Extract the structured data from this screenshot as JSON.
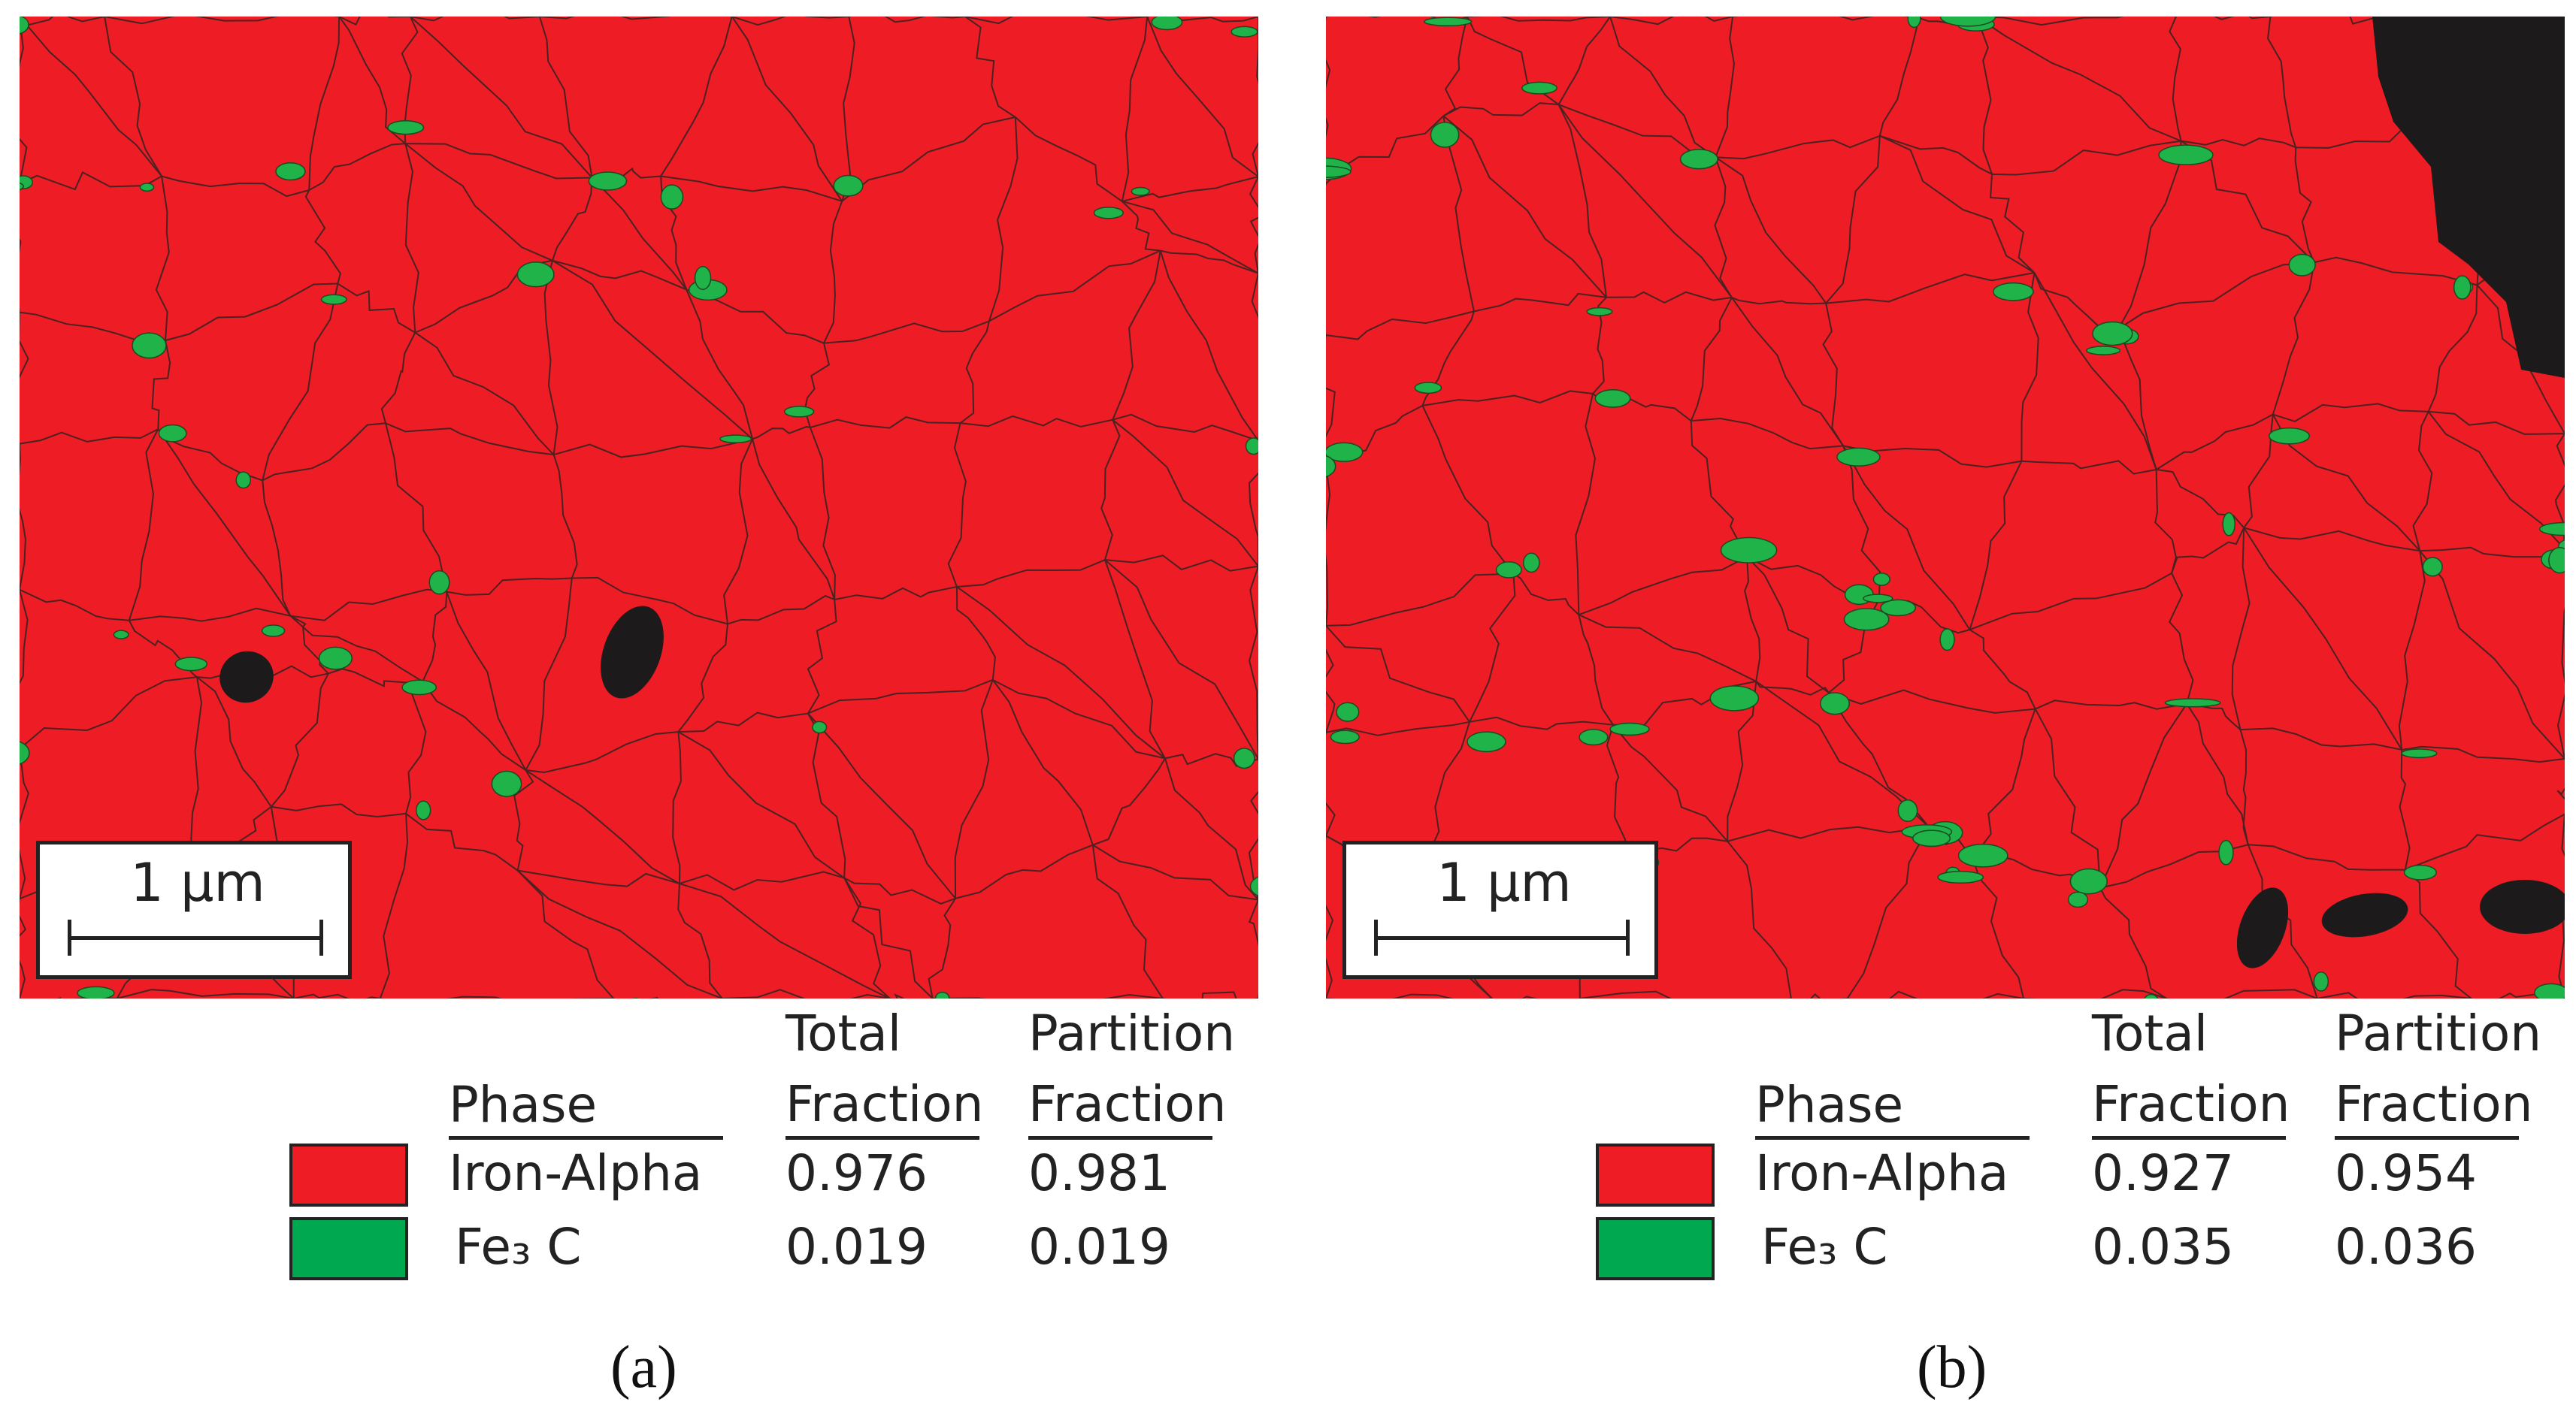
{
  "panels": [
    {
      "label": "(a)",
      "scale_bar": "1 µm",
      "table": {
        "headers": [
          "Phase",
          "Total Fraction",
          "Partition Fraction"
        ],
        "rows": [
          [
            "Iron-Alpha",
            "0.976",
            "0.981"
          ],
          [
            "Fe₃ C",
            "0.019",
            "0.019"
          ]
        ]
      }
    },
    {
      "label": "(b)",
      "scale_bar": "1 µm",
      "table": {
        "headers": [
          "Phase",
          "Total Fraction",
          "Partition Fraction"
        ],
        "rows": [
          [
            "Iron-Alpha",
            "0.927",
            "0.954"
          ],
          [
            "Fe₃ C",
            "0.035",
            "0.036"
          ]
        ]
      }
    }
  ]
}
